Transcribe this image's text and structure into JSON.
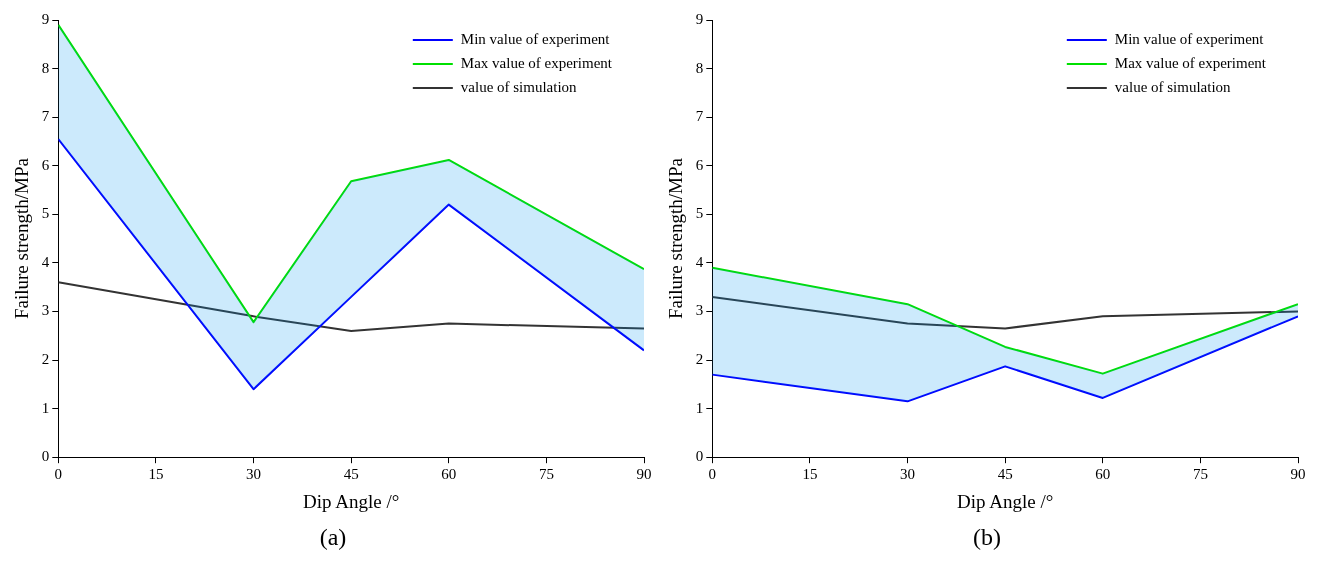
{
  "chart_data": [
    {
      "type": "line",
      "xlabel": "Dip Angle /°",
      "ylabel": "Failure strength/MPa",
      "annotations": [
        "(a)"
      ],
      "x": [
        0,
        30,
        45,
        60,
        90
      ],
      "xlim": [
        0,
        90
      ],
      "xticks": [
        0,
        15,
        30,
        45,
        60,
        75,
        90
      ],
      "ylim": [
        0,
        9
      ],
      "yticks": [
        0,
        1,
        2,
        3,
        4,
        5,
        6,
        7,
        8,
        9
      ],
      "grid": false,
      "legend": "top right",
      "marker": "none",
      "line_style": "solid",
      "series": [
        {
          "name": "Min value of experiment",
          "color": "#0000ff",
          "values": [
            6.55,
            1.4,
            3.3,
            5.2,
            2.2
          ],
          "lower": [
            6.55,
            1.4,
            3.3,
            5.2,
            2.2
          ],
          "upper": [
            8.9,
            2.78,
            5.68,
            6.12,
            3.87
          ]
        },
        {
          "name": "Max value of experiment",
          "color": "#00e000",
          "values": [
            8.9,
            2.78,
            5.68,
            6.12,
            3.87
          ]
        },
        {
          "name": "value of simulation",
          "color": "#333333",
          "values": [
            3.6,
            2.9,
            2.6,
            2.75,
            2.65
          ]
        }
      ]
    },
    {
      "type": "line",
      "xlabel": "Dip Angle /°",
      "ylabel": "Failure strength/MPa",
      "annotations": [
        "(b)"
      ],
      "x": [
        0,
        30,
        45,
        60,
        90
      ],
      "xlim": [
        0,
        90
      ],
      "xticks": [
        0,
        15,
        30,
        45,
        60,
        75,
        90
      ],
      "ylim": [
        0,
        9
      ],
      "yticks": [
        0,
        1,
        2,
        3,
        4,
        5,
        6,
        7,
        8,
        9
      ],
      "grid": false,
      "legend": "top right",
      "marker": "none",
      "line_style": "solid",
      "series": [
        {
          "name": "Min value of experiment",
          "color": "#0000ff",
          "values": [
            1.7,
            1.15,
            1.87,
            1.22,
            2.9
          ],
          "lower": [
            1.7,
            1.15,
            1.87,
            1.22,
            2.9
          ],
          "upper": [
            3.9,
            3.15,
            2.27,
            1.72,
            3.15
          ]
        },
        {
          "name": "Max value of experiment",
          "color": "#00e000",
          "values": [
            3.9,
            3.15,
            2.27,
            1.72,
            3.15
          ]
        },
        {
          "name": "value of simulation",
          "color": "#333333",
          "values": [
            3.3,
            2.75,
            2.65,
            2.9,
            3.0
          ]
        }
      ]
    }
  ]
}
